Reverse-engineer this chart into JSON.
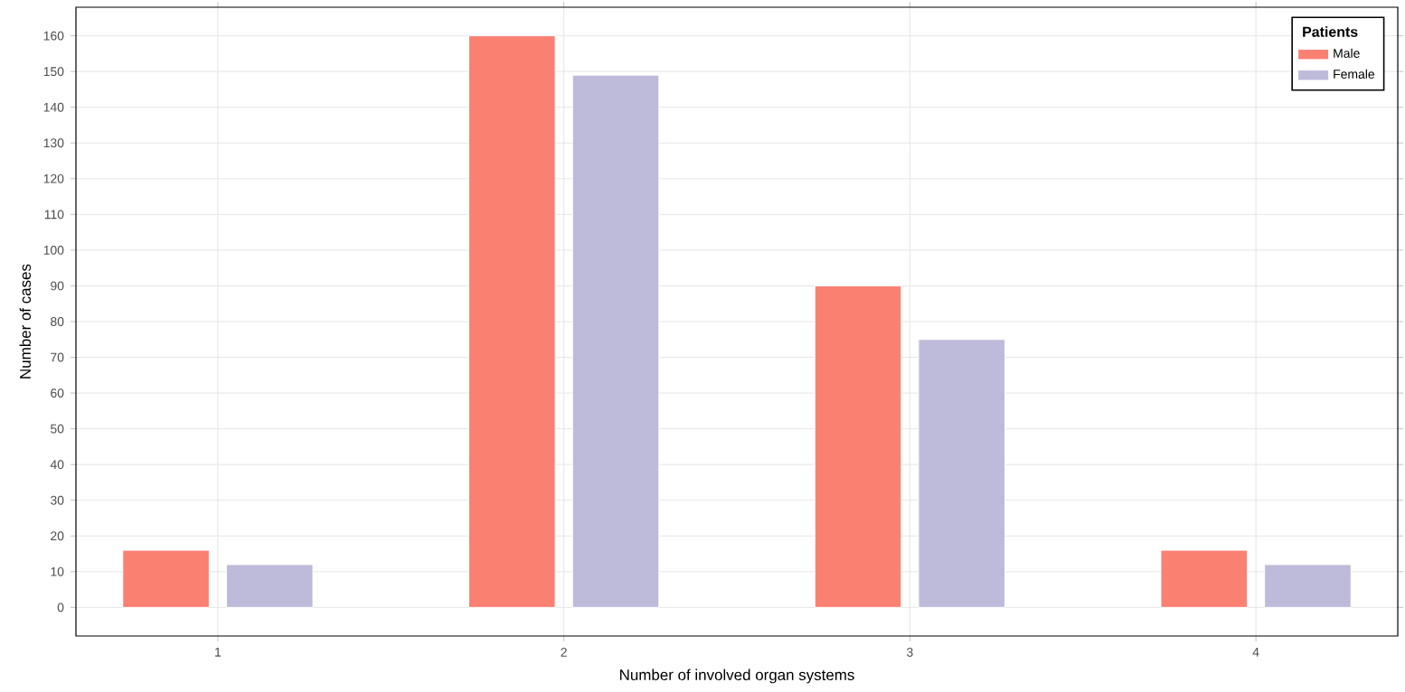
{
  "chart_data": {
    "type": "bar",
    "xlabel": "Number of involved organ systems",
    "ylabel": "Number of cases",
    "legend_title": "Patients",
    "categories": [
      "1",
      "2",
      "3",
      "4"
    ],
    "series": [
      {
        "name": "Male",
        "color": "#fa8072",
        "values": [
          16,
          160,
          90,
          16
        ]
      },
      {
        "name": "Female",
        "color": "#bebada",
        "values": [
          12,
          149,
          75,
          12
        ]
      }
    ],
    "ylim": [
      -8,
      168
    ],
    "yticks": [
      0,
      10,
      20,
      30,
      40,
      50,
      60,
      70,
      80,
      90,
      100,
      110,
      120,
      130,
      140,
      150,
      160
    ],
    "grid": true,
    "legend": "top right"
  }
}
